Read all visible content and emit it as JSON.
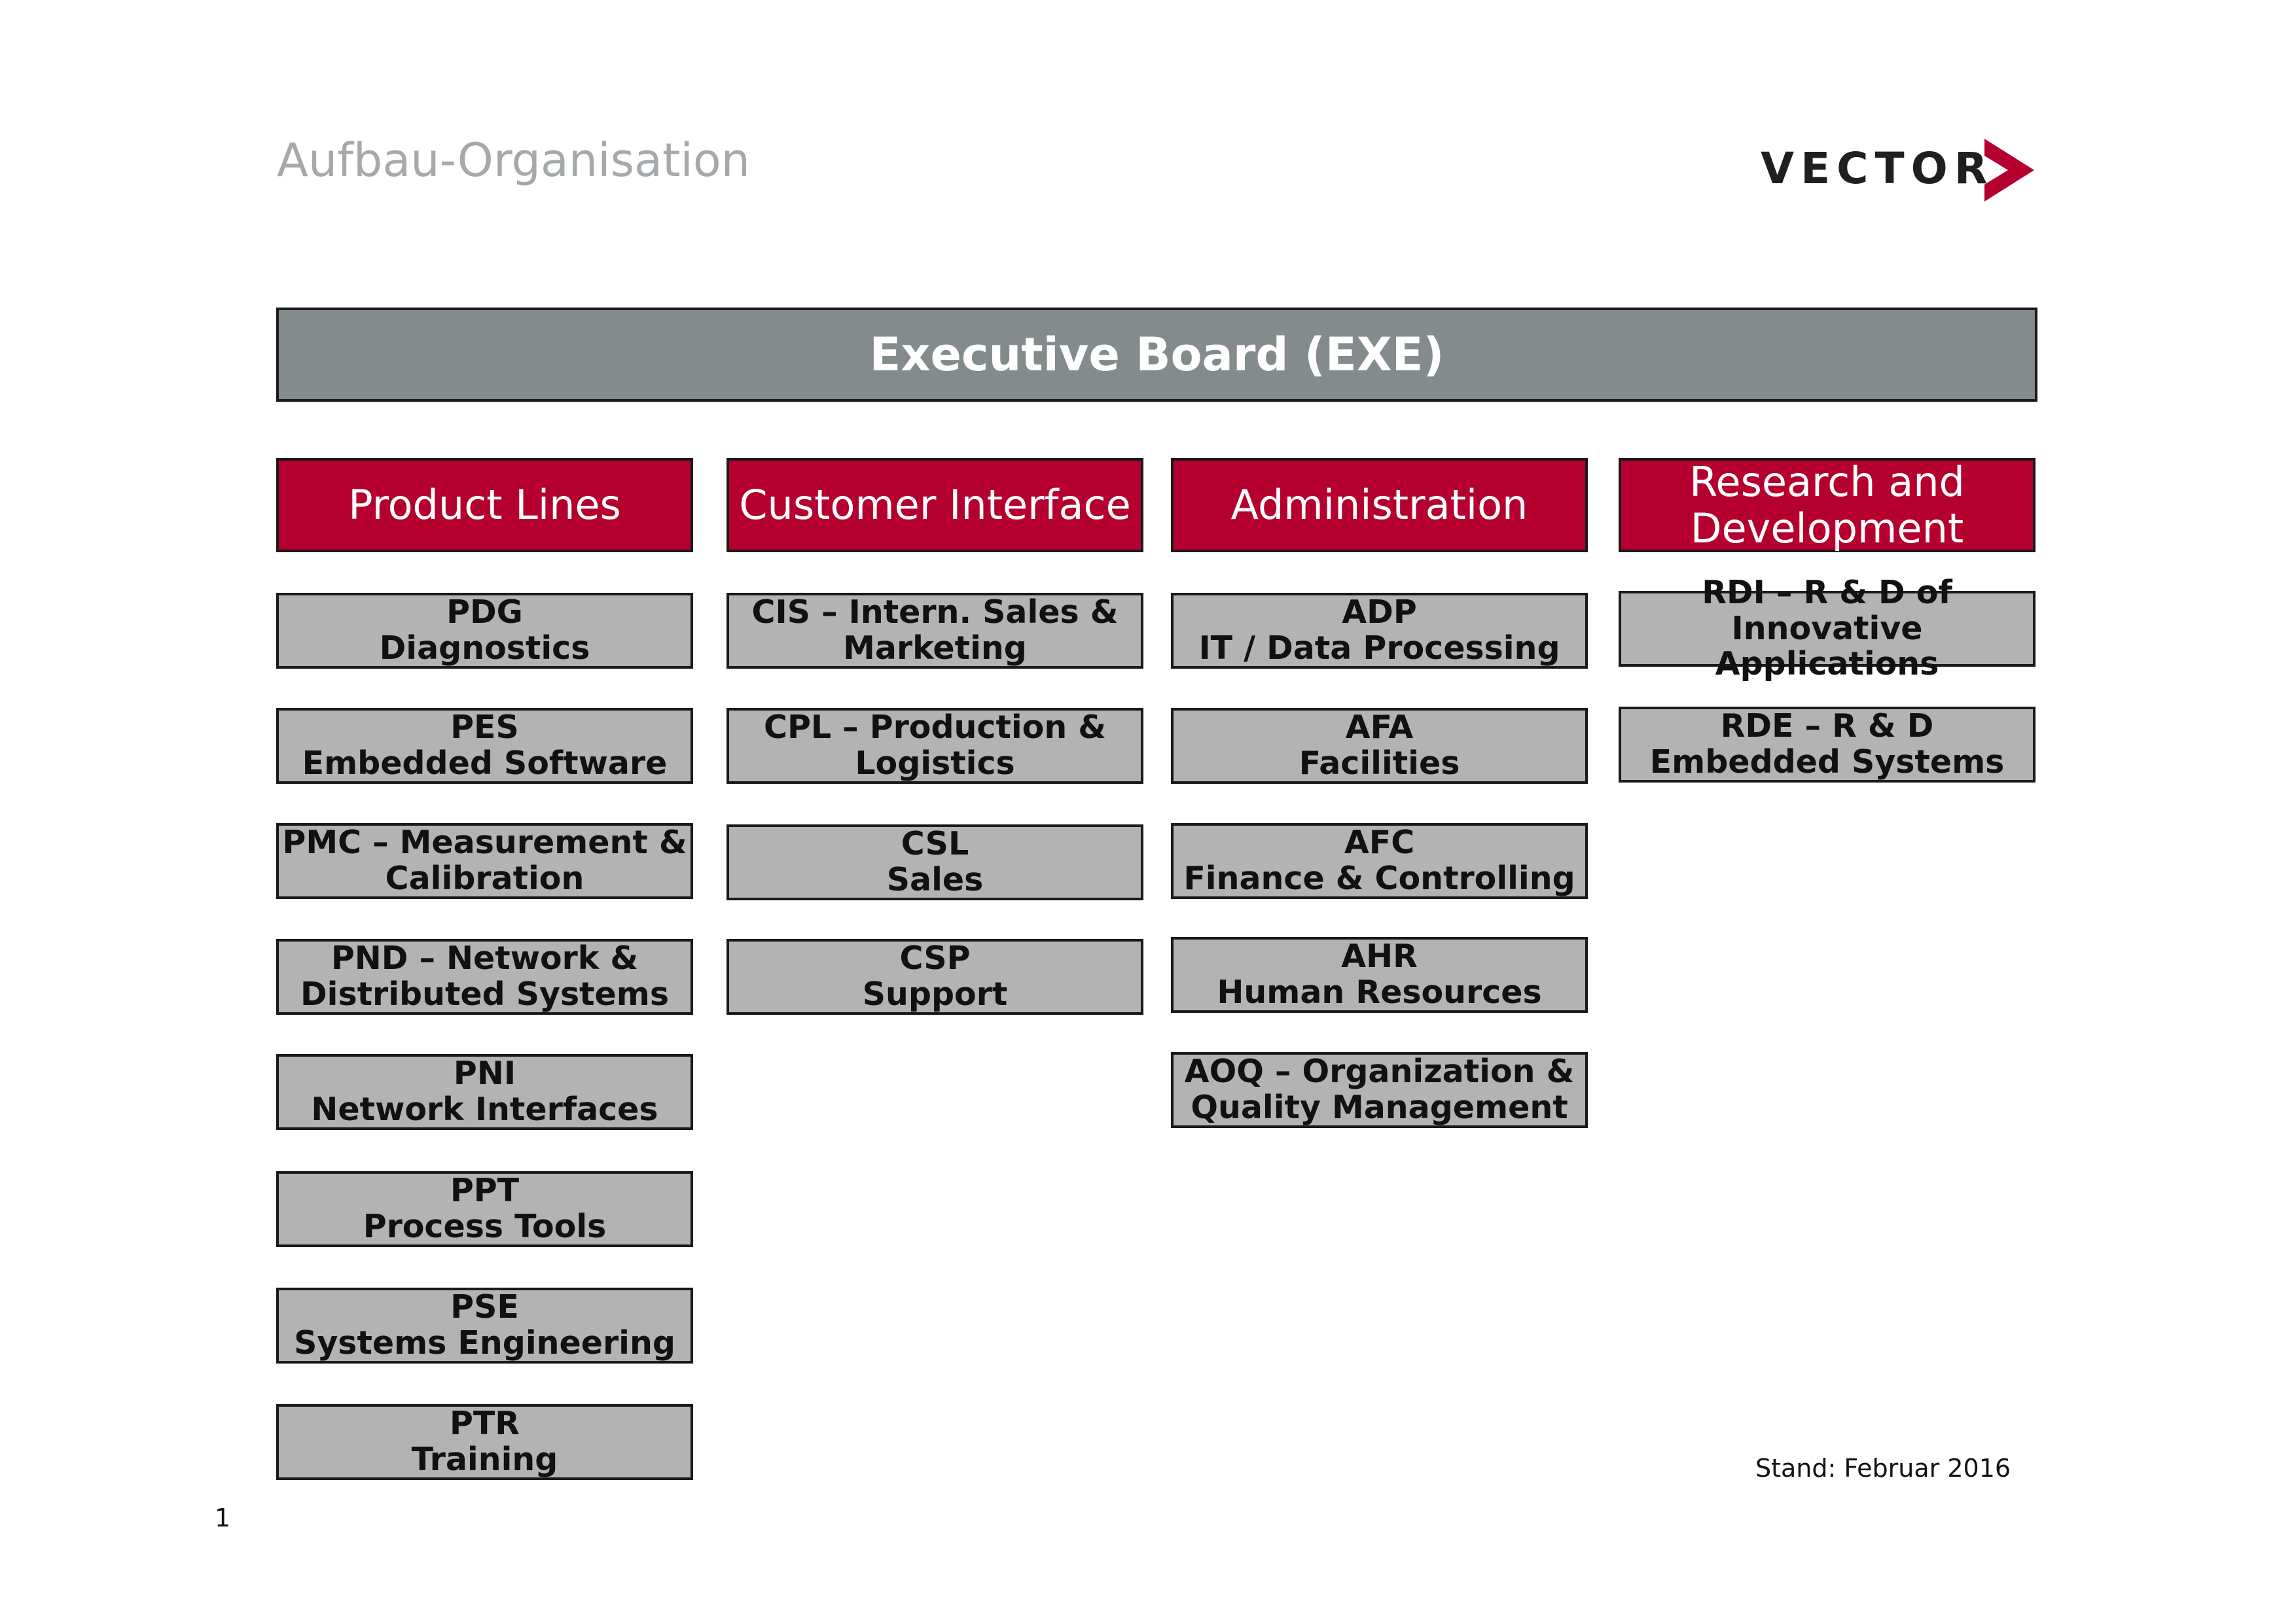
{
  "page": {
    "title": "Aufbau-Organisation",
    "logo_text": "VECTOR",
    "date_note": "Stand: Februar 2016",
    "page_number": "1"
  },
  "executive": {
    "label": "Executive Board (EXE)"
  },
  "colors": {
    "executive_fill": "#838b8d",
    "department_fill": "#b5002f",
    "unit_fill": "#b3b3b3",
    "title_gray": "#a6a9ab",
    "logo_accent": "#b5002f"
  },
  "columns": [
    {
      "label": "Product Lines",
      "units": [
        "PDG\nDiagnostics",
        "PES\nEmbedded Software",
        "PMC – Measurement &\nCalibration",
        "PND – Network &\nDistributed Systems",
        "PNI\nNetwork Interfaces",
        "PPT\nProcess Tools",
        "PSE\nSystems Engineering",
        "PTR\nTraining"
      ]
    },
    {
      "label": "Customer Interface",
      "units": [
        "CIS – Intern. Sales &\nMarketing",
        "CPL – Production &\nLogistics",
        "CSL\nSales",
        "CSP\nSupport"
      ]
    },
    {
      "label": "Administration",
      "units": [
        "ADP\nIT / Data Processing",
        "AFA\nFacilities",
        "AFC\nFinance & Controlling",
        "AHR\nHuman Resources",
        "AOQ – Organization &\nQuality Management"
      ]
    },
    {
      "label": "Research and\nDevelopment",
      "units": [
        "RDI – R & D of\nInnovative Applications",
        "RDE – R & D\nEmbedded Systems"
      ]
    }
  ]
}
